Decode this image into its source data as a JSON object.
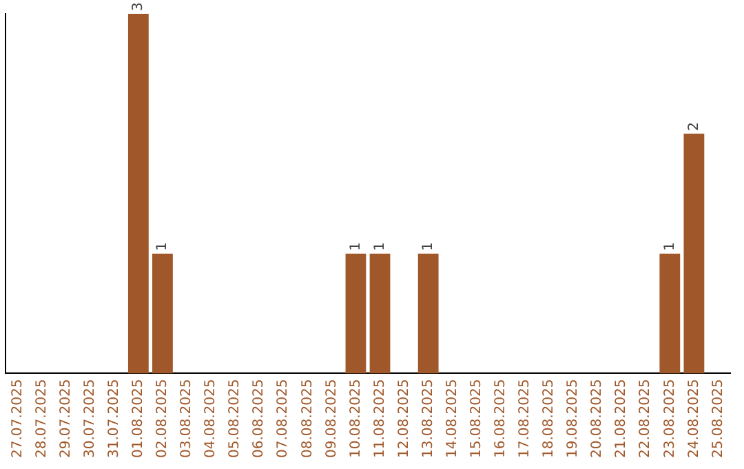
{
  "chart_data": {
    "type": "bar",
    "categories": [
      "27.07.2025",
      "28.07.2025",
      "29.07.2025",
      "30.07.2025",
      "31.07.2025",
      "01.08.2025",
      "02.08.2025",
      "03.08.2025",
      "04.08.2025",
      "05.08.2025",
      "06.08.2025",
      "07.08.2025",
      "08.08.2025",
      "09.08.2025",
      "10.08.2025",
      "11.08.2025",
      "12.08.2025",
      "13.08.2025",
      "14.08.2025",
      "15.08.2025",
      "16.08.2025",
      "17.08.2025",
      "18.08.2025",
      "19.08.2025",
      "20.08.2025",
      "21.08.2025",
      "22.08.2025",
      "23.08.2025",
      "24.08.2025",
      "25.08.2025"
    ],
    "values": [
      0,
      0,
      0,
      0,
      0,
      3,
      1,
      0,
      0,
      0,
      0,
      0,
      0,
      0,
      1,
      1,
      0,
      1,
      0,
      0,
      0,
      0,
      0,
      0,
      0,
      0,
      0,
      1,
      2,
      0
    ],
    "value_labels": [
      null,
      null,
      null,
      null,
      null,
      "3",
      "1",
      null,
      null,
      null,
      null,
      null,
      null,
      null,
      "1",
      "1",
      null,
      "1",
      null,
      null,
      null,
      null,
      null,
      null,
      null,
      null,
      null,
      "1",
      "2",
      null
    ],
    "color": "#a0582a",
    "ylim": [
      0,
      3
    ],
    "tick_labels": "x",
    "grid": false,
    "legend": false
  }
}
